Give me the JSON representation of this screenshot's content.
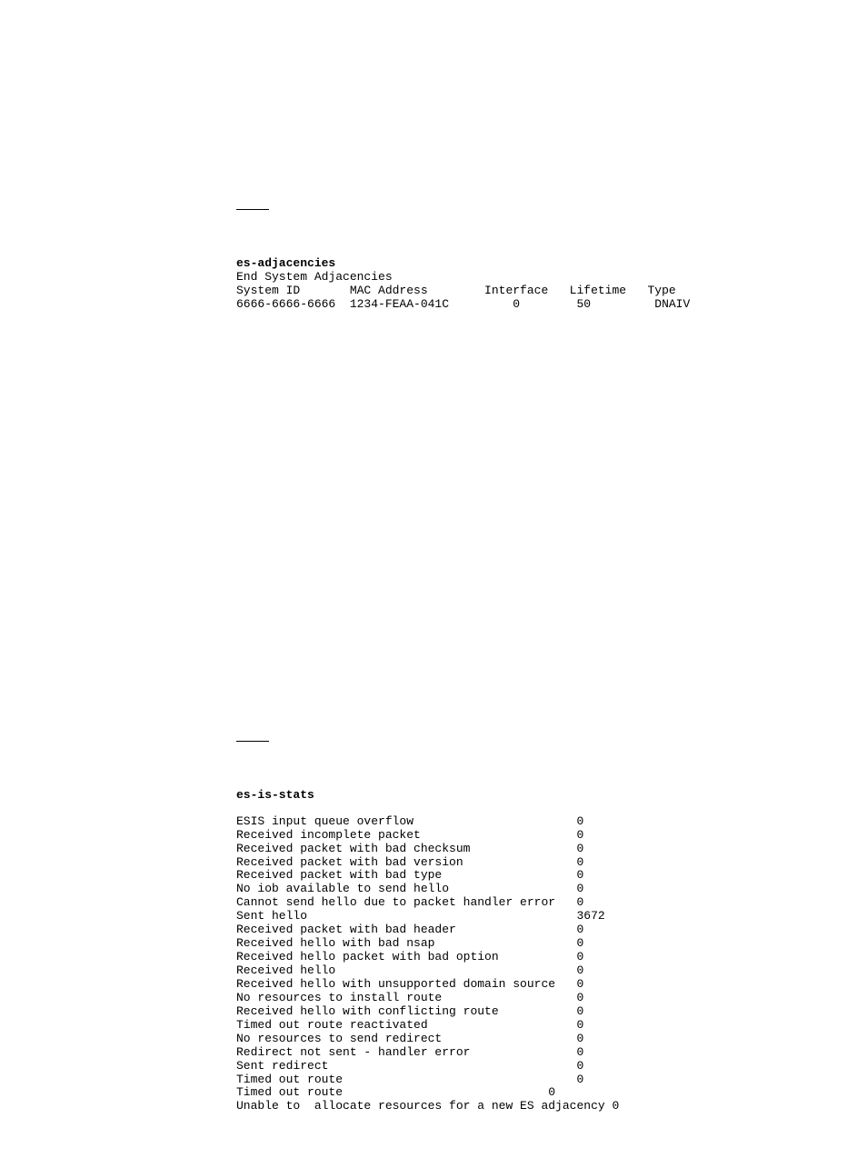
{
  "section1": {
    "heading": "es-adjacencies",
    "table": {
      "title": "End System Adjacencies",
      "header": "System ID       MAC Address        Interface   Lifetime   Type",
      "row": "6666-6666-6666  1234-FEAA-041C         0        50         DNAIV"
    }
  },
  "section2": {
    "heading": "es-is-stats",
    "rows": [
      "ESIS input queue overflow                       0",
      "Received incomplete packet                      0",
      "Received packet with bad checksum               0",
      "Received packet with bad version                0",
      "Received packet with bad type                   0",
      "No iob available to send hello                  0",
      "Cannot send hello due to packet handler error   0",
      "Sent hello                                      3672",
      "Received packet with bad header                 0",
      "Received hello with bad nsap                    0",
      "Received hello packet with bad option           0",
      "Received hello                                  0",
      "Received hello with unsupported domain source   0",
      "No resources to install route                   0",
      "Received hello with conflicting route           0",
      "Timed out route reactivated                     0",
      "No resources to send redirect                   0",
      "Redirect not sent - handler error               0",
      "Sent redirect                                   0",
      "Timed out route                                 0",
      "Timed out route                             0",
      "Unable to  allocate resources for a new ES adjacency 0"
    ]
  }
}
